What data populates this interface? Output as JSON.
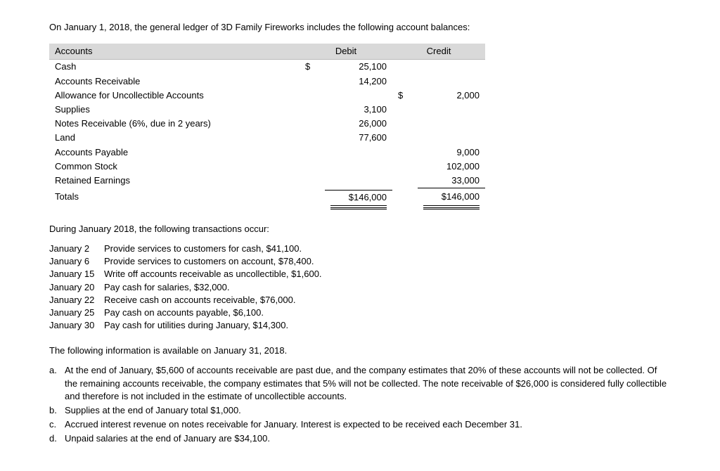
{
  "intro": "On January 1, 2018, the general ledger of 3D Family Fireworks includes the following account balances:",
  "headers": {
    "accounts": "Accounts",
    "debit": "Debit",
    "credit": "Credit"
  },
  "rows": [
    {
      "name": "Cash",
      "debit_sym": "$",
      "debit": "25,100",
      "credit_sym": "",
      "credit": ""
    },
    {
      "name": "Accounts Receivable",
      "debit_sym": "",
      "debit": "14,200",
      "credit_sym": "",
      "credit": ""
    },
    {
      "name": "Allowance for Uncollectible Accounts",
      "debit_sym": "",
      "debit": "",
      "credit_sym": "$",
      "credit": "2,000"
    },
    {
      "name": "Supplies",
      "debit_sym": "",
      "debit": "3,100",
      "credit_sym": "",
      "credit": ""
    },
    {
      "name": "Notes Receivable (6%, due in 2 years)",
      "debit_sym": "",
      "debit": "26,000",
      "credit_sym": "",
      "credit": ""
    },
    {
      "name": "Land",
      "debit_sym": "",
      "debit": "77,600",
      "credit_sym": "",
      "credit": ""
    },
    {
      "name": "Accounts Payable",
      "debit_sym": "",
      "debit": "",
      "credit_sym": "",
      "credit": "9,000"
    },
    {
      "name": "Common Stock",
      "debit_sym": "",
      "debit": "",
      "credit_sym": "",
      "credit": "102,000"
    },
    {
      "name": "Retained Earnings",
      "debit_sym": "",
      "debit": "",
      "credit_sym": "",
      "credit": "33,000"
    }
  ],
  "totals": {
    "label": "Totals",
    "debit": "$146,000",
    "credit": "$146,000"
  },
  "during": "During January 2018, the following transactions occur:",
  "transactions": [
    {
      "date": "January   2",
      "text": "Provide services to customers for cash, $41,100."
    },
    {
      "date": "January   6",
      "text": "Provide services to customers on account, $78,400."
    },
    {
      "date": "January 15",
      "text": "Write off accounts receivable as uncollectible, $1,600."
    },
    {
      "date": "January 20",
      "text": "Pay cash for salaries, $32,000."
    },
    {
      "date": "January 22",
      "text": "Receive cash on accounts receivable, $76,000."
    },
    {
      "date": "January 25",
      "text": "Pay cash on accounts payable, $6,100."
    },
    {
      "date": "January 30",
      "text": "Pay cash for utilities during January, $14,300."
    }
  ],
  "info_heading": "The following information is available on January 31, 2018.",
  "adjustments": [
    {
      "letter": "a.",
      "text": "At the end of January, $5,600 of accounts receivable are past due, and the company estimates that 20% of these accounts will not be collected. Of the remaining accounts receivable, the company estimates that 5% will not be collected. The note receivable of $26,000 is considered fully collectible and therefore is not included in the estimate of uncollectible accounts."
    },
    {
      "letter": "b.",
      "text": "Supplies at the end of January total $1,000."
    },
    {
      "letter": "c.",
      "text": "Accrued interest revenue on notes receivable for January. Interest is expected to be received each December 31."
    },
    {
      "letter": "d.",
      "text": "Unpaid salaries at the end of January are $34,100."
    }
  ]
}
